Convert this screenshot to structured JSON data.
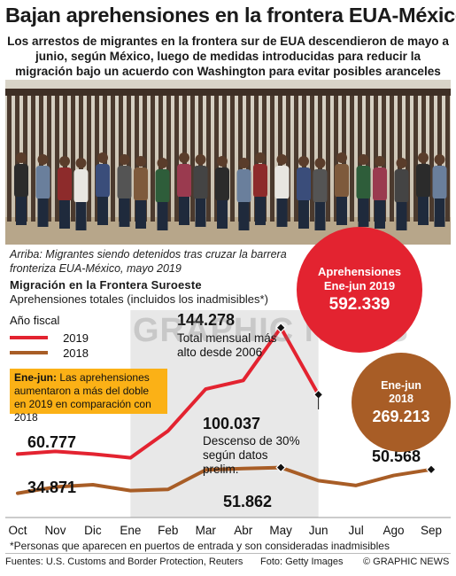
{
  "title": "Bajan aprehensiones en la frontera EUA-México",
  "subtitle": "Los arrestos de migrantes en la frontera sur de EUA descendieron de mayo a junio, según México, luego de medidas introducidas para reducir la migración bajo un acuerdo con Washington para evitar posibles aranceles comerciales",
  "caption": "Arriba: Migrantes siendo detenidos tras cruzar la barrera fronteriza EUA-México, mayo 2019",
  "badge_2019": {
    "label_line1": "Aprehensiones",
    "label_line2": "Ene-jun 2019",
    "value": "592.339"
  },
  "badge_2018": {
    "label_line1": "Ene-jun",
    "label_line2": "2018",
    "value": "269.213"
  },
  "note": {
    "bold": "Ene-jun:",
    "text": " Las aprehensiones aumentaron a más del doble en 2019 en comparación con 2018"
  },
  "watermark": "GRAPHIC NEWS",
  "footnote": "*Personas que aparecen en puertos de entrada y son consideradas inadmisibles",
  "sources": "Fuentes: U.S. Customs and Border Protection, Reuters",
  "photo_credit": "Foto: Getty Images",
  "copyright": "© GRAPHIC NEWS",
  "colors": {
    "series_2019": "#e32330",
    "series_2018": "#a85d26",
    "shade": "#e8e8e8",
    "note_box": "#fbb116"
  },
  "chart_data": {
    "type": "line",
    "title": "Migración en la Frontera Suroeste",
    "subtitle": "Aprehensiones totales (incluidos los inadmisibles*)",
    "legend_title": "Año fiscal",
    "legend_position": "top-left",
    "categories": [
      "Oct",
      "Nov",
      "Dic",
      "Ene",
      "Feb",
      "Mar",
      "Abr",
      "May",
      "Jun",
      "Jul",
      "Ago",
      "Sep"
    ],
    "ylim": [
      20000,
      150000
    ],
    "grid": false,
    "shaded_range": [
      "Ene",
      "Jun"
    ],
    "series": [
      {
        "name": "2019",
        "values": [
          60777,
          62500,
          60800,
          58300,
          76100,
          103700,
          109400,
          144278,
          100037,
          null,
          null,
          null
        ]
      },
      {
        "name": "2018",
        "values": [
          34871,
          39000,
          40500,
          36600,
          37400,
          50300,
          51200,
          51862,
          43200,
          40000,
          46600,
          50568
        ]
      }
    ],
    "annotations": [
      {
        "label": "144.278",
        "text": "Total mensual más alto desde 2006"
      },
      {
        "label": "100.037",
        "text": "Descenso de 30% según datos prelim."
      },
      {
        "label": "60.777"
      },
      {
        "label": "34.871"
      },
      {
        "label": "51.862"
      },
      {
        "label": "50.568"
      }
    ]
  }
}
